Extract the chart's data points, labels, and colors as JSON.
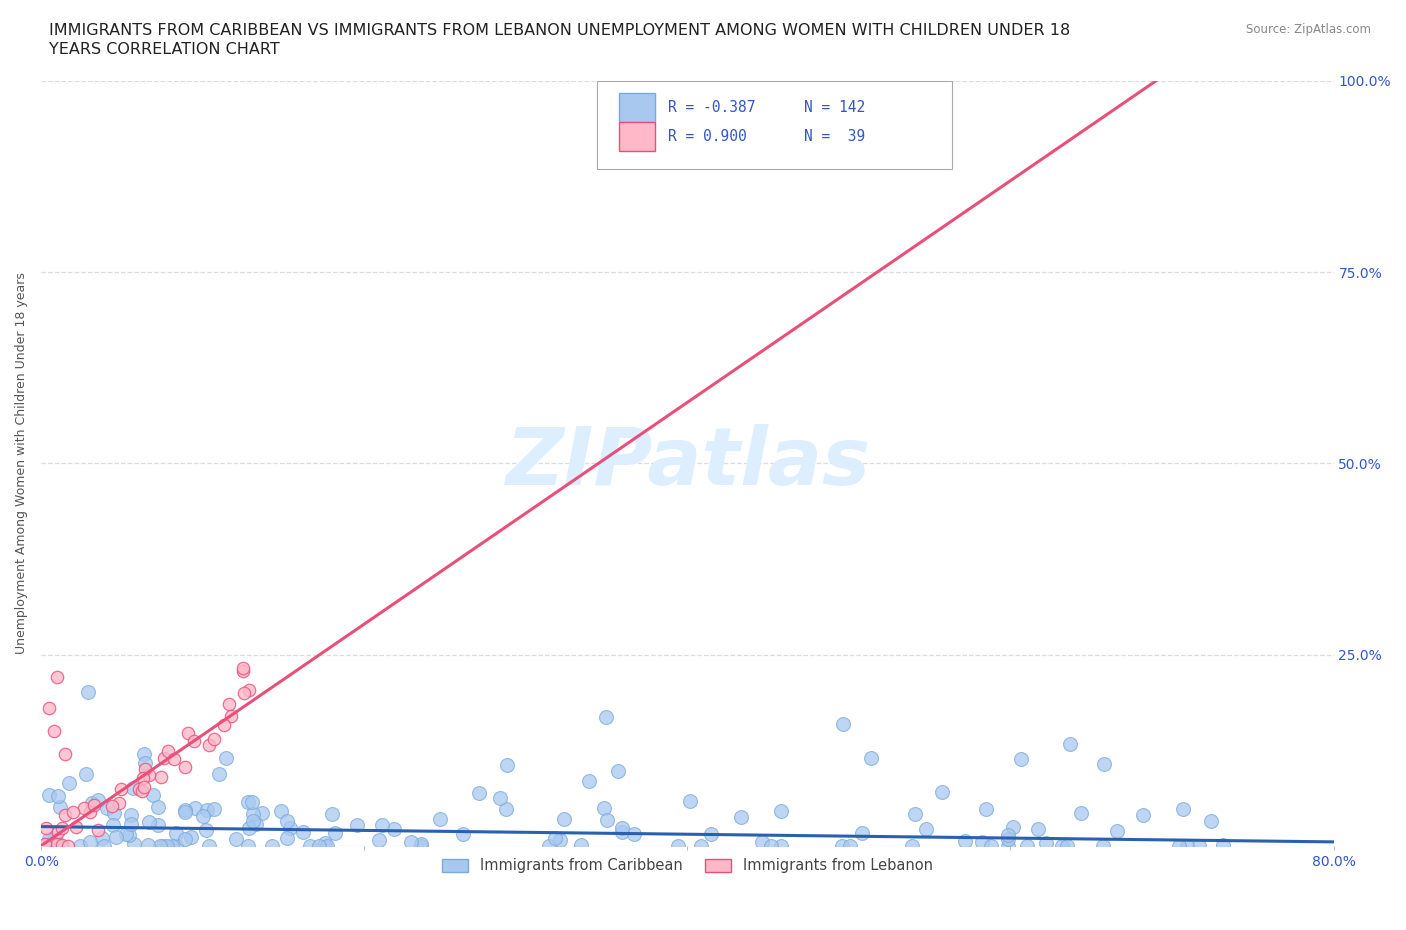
{
  "title_line1": "IMMIGRANTS FROM CARIBBEAN VS IMMIGRANTS FROM LEBANON UNEMPLOYMENT AMONG WOMEN WITH CHILDREN UNDER 18",
  "title_line2": "YEARS CORRELATION CHART",
  "source": "Source: ZipAtlas.com",
  "ylabel": "Unemployment Among Women with Children Under 18 years",
  "xmin": 0.0,
  "xmax": 0.8,
  "ymin": 0.0,
  "ymax": 1.0,
  "xticks": [
    0.0,
    0.2,
    0.4,
    0.6,
    0.8
  ],
  "ytick_positions": [
    0.0,
    0.25,
    0.5,
    0.75,
    1.0
  ],
  "yticklabels_right": [
    "",
    "25.0%",
    "50.0%",
    "75.0%",
    "100.0%"
  ],
  "caribbean_R": -0.387,
  "caribbean_N": 142,
  "lebanon_R": 0.9,
  "lebanon_N": 39,
  "caribbean_color": "#a8c8f0",
  "caribbean_edge_color": "#7aaad8",
  "caribbean_line_color": "#2a60b0",
  "lebanon_color": "#ffb8c8",
  "lebanon_edge_color": "#e8507a",
  "lebanon_line_color": "#e8507a",
  "legend_text_color": "#3355cc",
  "watermark_color": "#ddeeff",
  "background_color": "#ffffff",
  "grid_color": "#dddddd",
  "title_fontsize": 11.5,
  "axis_label_fontsize": 9,
  "tick_color": "#3355cc",
  "source_color": "#888888"
}
